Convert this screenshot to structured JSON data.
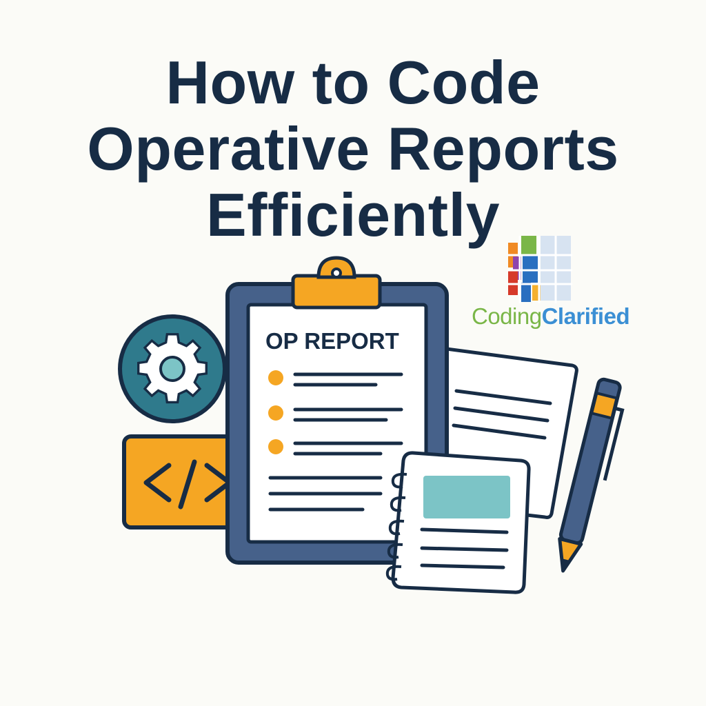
{
  "title": {
    "lines": [
      "How to Code",
      "Operative Reports",
      "Efficiently"
    ],
    "color": "#172c45"
  },
  "logo": {
    "word1": "Coding",
    "word2": "Clarified",
    "colors": [
      "#f08a24",
      "#7ab648",
      "#8e44ad",
      "#2a6fc0",
      "#d63a2a",
      "#f5b02e",
      "#d7e3f1"
    ]
  },
  "clipboard": {
    "label": "OP REPORT",
    "frame_color": "#46618a",
    "clip_color": "#f5a623"
  },
  "icons": [
    "gear-icon",
    "code-icon",
    "clipboard-icon",
    "document-icon",
    "notepad-icon",
    "pen-icon"
  ],
  "accent_colors": {
    "orange": "#f5a623",
    "teal": "#2f7a8c",
    "light_teal": "#7cc4c6",
    "navy": "#172c45"
  }
}
